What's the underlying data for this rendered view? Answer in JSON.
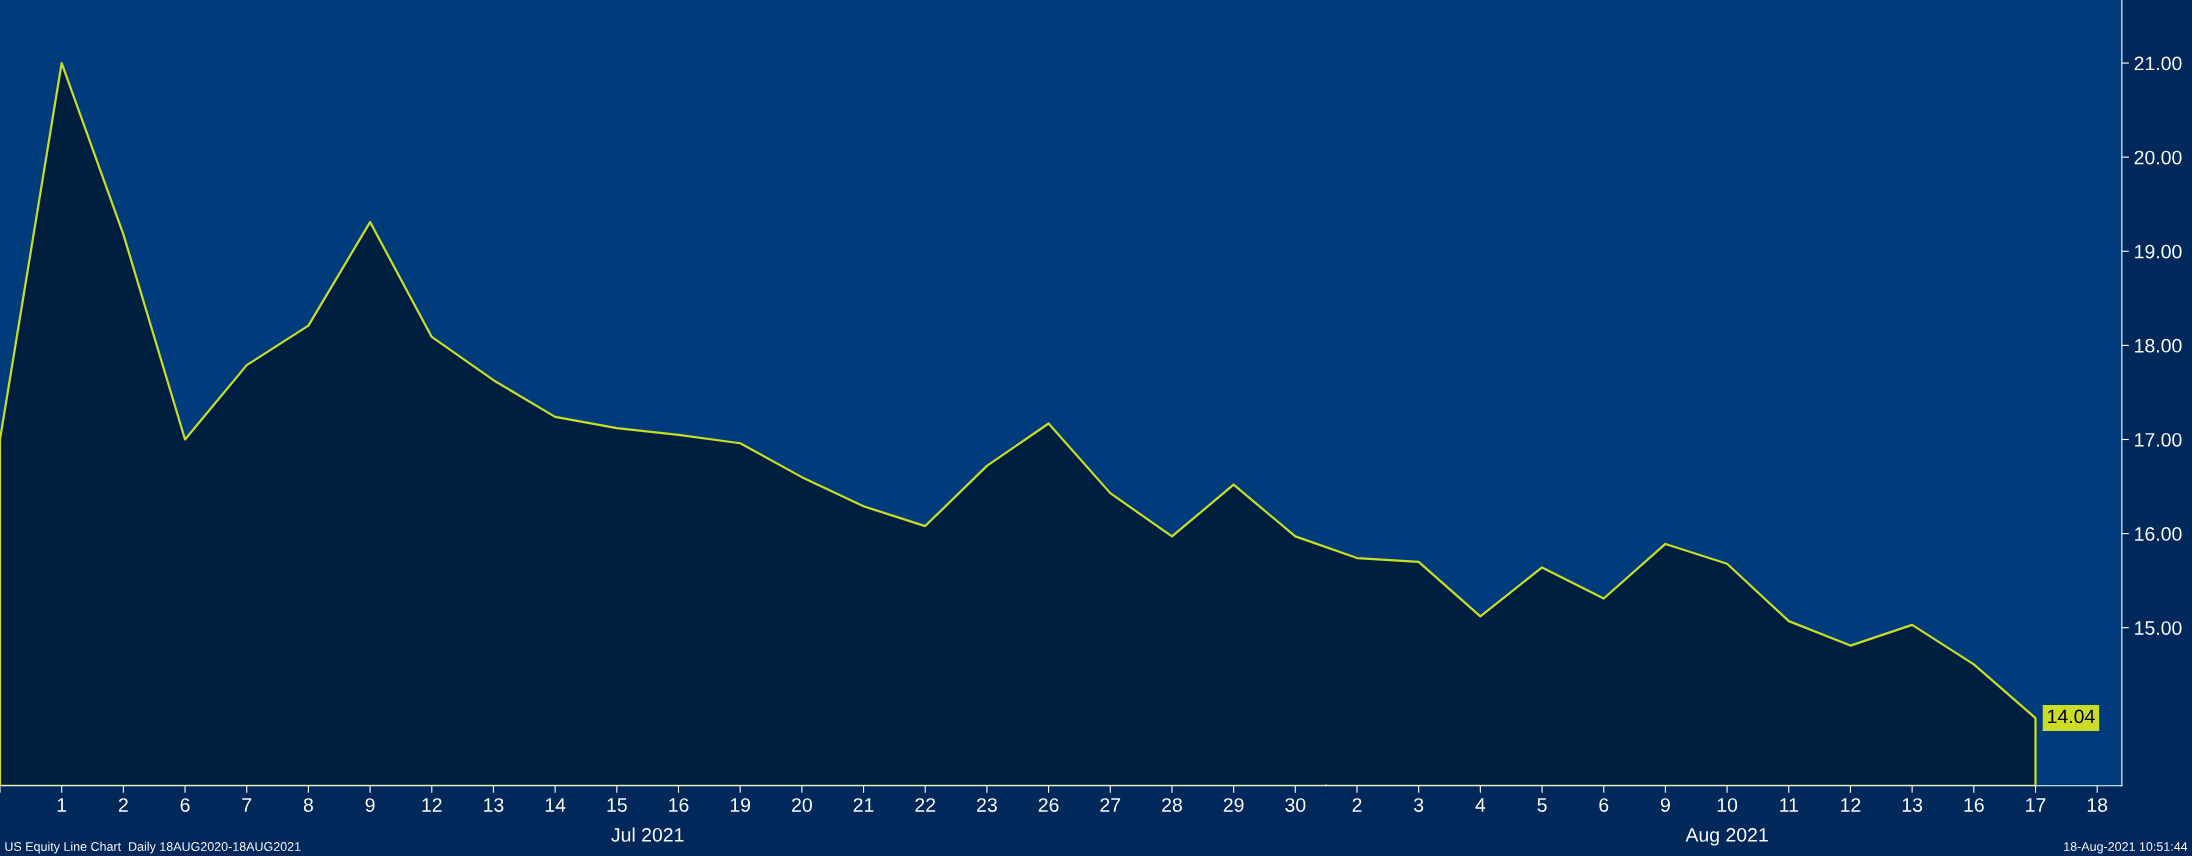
{
  "chart_data": {
    "type": "area",
    "categories": [
      null,
      "1",
      "2",
      "6",
      "7",
      "8",
      "9",
      "12",
      "13",
      "14",
      "15",
      "16",
      "19",
      "20",
      "21",
      "22",
      "23",
      "26",
      "27",
      "28",
      "29",
      "30",
      "2",
      "3",
      "4",
      "5",
      "6",
      "9",
      "10",
      "11",
      "12",
      "13",
      "16",
      "17",
      "18"
    ],
    "series": [
      {
        "color": "#c8dc28",
        "values": [
          17.0,
          21.0,
          19.18,
          17.0,
          17.79,
          18.21,
          19.31,
          18.09,
          17.63,
          17.24,
          17.12,
          17.05,
          16.96,
          16.6,
          16.29,
          16.08,
          16.72,
          17.17,
          16.43,
          15.97,
          16.52,
          15.97,
          15.74,
          15.7,
          15.12,
          15.64,
          15.31,
          15.89,
          15.68,
          15.07,
          14.81,
          15.03,
          14.61,
          14.04,
          null
        ],
        "value_labels": [
          null,
          null,
          null,
          null,
          null,
          null,
          null,
          null,
          null,
          null,
          null,
          null,
          null,
          null,
          null,
          null,
          null,
          null,
          null,
          null,
          null,
          null,
          null,
          null,
          null,
          null,
          null,
          null,
          null,
          null,
          null,
          null,
          null,
          "14.04",
          null
        ]
      }
    ],
    "ylim": [
      13.32,
      21.67
    ],
    "yticks": [
      {
        "value": 15,
        "label": "15.00"
      },
      {
        "value": 16,
        "label": "16.00"
      },
      {
        "value": 17,
        "label": "17.00"
      },
      {
        "value": 18,
        "label": "18.00"
      },
      {
        "value": 19,
        "label": "19.00"
      },
      {
        "value": 20,
        "label": "20.00"
      },
      {
        "value": 21,
        "label": "21.00"
      }
    ],
    "grid": false,
    "legend": false,
    "annotations": [
      "Jul 2021",
      "Aug 2021",
      "US Equity Line Chart  Daily 18AUG2020-18AUG2021",
      "18-Aug-2021 10:51:44"
    ]
  }
}
